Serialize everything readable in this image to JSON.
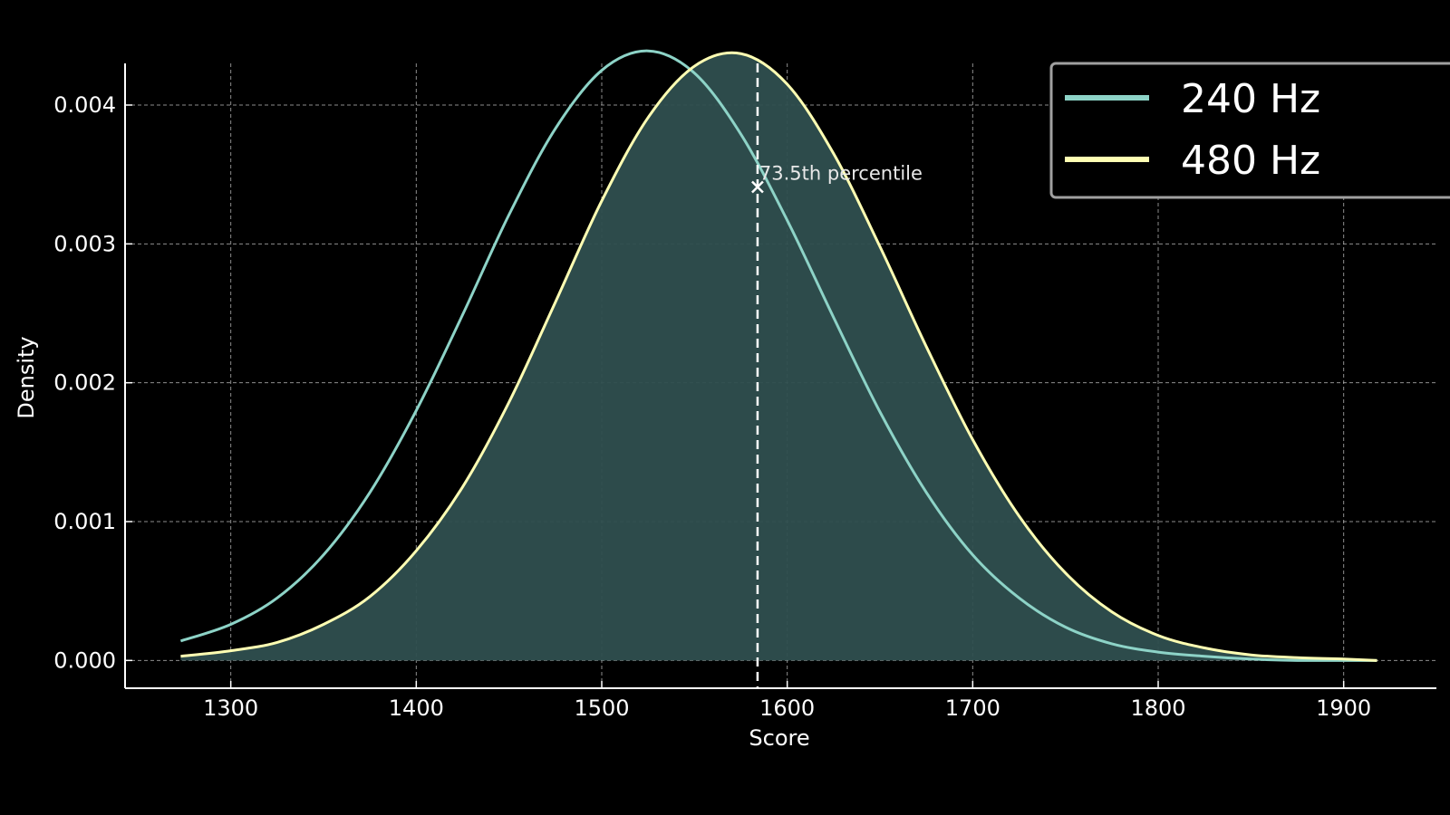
{
  "chart_data": {
    "type": "line",
    "title": "",
    "xlabel": "Score",
    "ylabel": "Density",
    "xlim": [
      1243,
      1950
    ],
    "ylim": [
      -0.0002,
      0.0043
    ],
    "x_ticks": [
      1300,
      1400,
      1500,
      1600,
      1700,
      1800,
      1900
    ],
    "x_tick_labels": [
      "1300",
      "1400",
      "1500",
      "1600",
      "1700",
      "1800",
      "1900"
    ],
    "y_ticks": [
      0.0,
      0.001,
      0.002,
      0.003,
      0.004
    ],
    "y_tick_labels": [
      "0.000",
      "0.001",
      "0.002",
      "0.003",
      "0.004"
    ],
    "grid": true,
    "legend_position": "top-right",
    "background": "#000000",
    "x": [
      1273,
      1300,
      1325,
      1350,
      1375,
      1400,
      1425,
      1450,
      1475,
      1500,
      1525,
      1550,
      1575,
      1600,
      1625,
      1650,
      1675,
      1700,
      1725,
      1750,
      1775,
      1800,
      1825,
      1850,
      1875,
      1900,
      1918
    ],
    "series": [
      {
        "name": "240 Hz",
        "color": "#8dd3c7",
        "filled": false,
        "values": [
          0.00014,
          0.00026,
          0.00045,
          0.00076,
          0.00121,
          0.0018,
          0.00249,
          0.00321,
          0.00383,
          0.00425,
          0.00439,
          0.00423,
          0.00379,
          0.00317,
          0.00247,
          0.00179,
          0.00121,
          0.00076,
          0.00045,
          0.00024,
          0.00012,
          6e-05,
          3e-05,
          1e-05,
          0.0,
          0.0,
          0.0
        ]
      },
      {
        "name": "480 Hz",
        "color": "#ffffb3",
        "filled": true,
        "fill_color": "#2f4f4f",
        "values": [
          3e-05,
          7e-05,
          0.00013,
          0.00026,
          0.00046,
          0.00079,
          0.00125,
          0.00186,
          0.00258,
          0.00331,
          0.00391,
          0.00428,
          0.00437,
          0.00415,
          0.00365,
          0.00298,
          0.00226,
          0.00159,
          0.00104,
          0.00063,
          0.00035,
          0.00018,
          9e-05,
          4e-05,
          2e-05,
          1e-05,
          0.0
        ]
      }
    ],
    "marker": {
      "x": 1584,
      "y": 0.00341,
      "label": "73.5th percentile",
      "line_style": "dashed",
      "color": "#ffffff"
    }
  }
}
